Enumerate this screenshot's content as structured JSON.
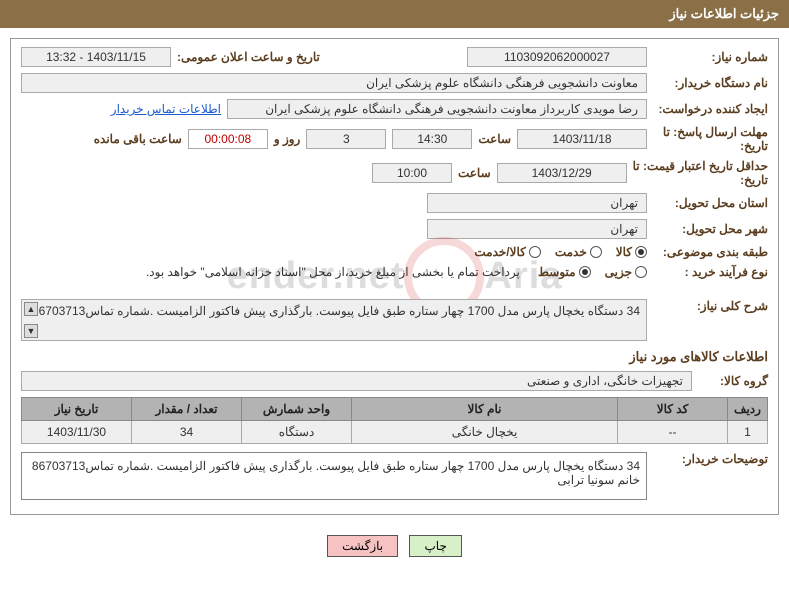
{
  "header": {
    "title": "جزئیات اطلاعات نیاز"
  },
  "fields": {
    "need_no_label": "شماره نیاز:",
    "need_no": "1103092062000027",
    "announce_label": "تاریخ و ساعت اعلان عمومی:",
    "announce_val": "1403/11/15 - 13:32",
    "buyer_org_label": "نام دستگاه خریدار:",
    "buyer_org": "معاونت دانشجویی  فرهنگی دانشگاه علوم پزشکی ایران",
    "requester_label": "ایجاد کننده درخواست:",
    "requester": "رضا  مویدی  کاربرداز معاونت دانشجویی  فرهنگی دانشگاه علوم پزشکی ایران",
    "contact_link": "اطلاعات تماس خریدار",
    "reply_deadline_to_label": "مهلت ارسال پاسخ:  تا",
    "date_label_suffix": "تاریخ:",
    "reply_deadline_date": "1403/11/18",
    "time_label": "ساعت",
    "reply_deadline_time": "14:30",
    "days_and": "روز و",
    "days_remaining": "3",
    "countdown": "00:00:08",
    "remaining_label": "ساعت باقی مانده",
    "price_valid_label": "حداقل تاریخ اعتبار قیمت:  تا",
    "price_valid_date": "1403/12/29",
    "price_valid_time": "10:00",
    "province_label": "استان محل تحویل:",
    "province": "تهران",
    "city_label": "شهر محل تحویل:",
    "city": "تهران",
    "subject_cat_label": "طبقه بندی موضوعی:",
    "subject_cat_options": [
      "کالا",
      "خدمت",
      "کالا/خدمت"
    ],
    "subject_cat_selected": 0,
    "proc_type_label": "نوع فرآیند خرید :",
    "proc_type_options": [
      "جزیی",
      "متوسط"
    ],
    "proc_type_selected": 1,
    "proc_note": "پرداخت تمام یا بخشی از مبلغ خرید،از محل \"اسناد خزانه اسلامی\" خواهد بود.",
    "general_desc_label": "شرح کلی نیاز:",
    "general_desc": "34 دستگاه یخچال پارس مدل 1700 چهار ستاره طبق فایل پیوست. بارگذاری پیش فاکتور الزامیست .شماره تماس86703713",
    "items_title": "اطلاعات کالاهای مورد نیاز",
    "group_label": "گروه کالا:",
    "group": "تجهیزات خانگی، اداری و صنعتی"
  },
  "table": {
    "columns": [
      "ردیف",
      "کد کالا",
      "نام کالا",
      "واحد شمارش",
      "تعداد / مقدار",
      "تاریخ نیاز"
    ],
    "col_widths": [
      "40px",
      "110px",
      "auto",
      "110px",
      "110px",
      "110px"
    ],
    "rows": [
      [
        "1",
        "--",
        "یخچال خانگی",
        "دستگاه",
        "34",
        "1403/11/30"
      ]
    ]
  },
  "buyer_note": {
    "label": "توضیحات خریدار:",
    "text": "34 دستگاه یخچال پارس مدل 1700 چهار ستاره طبق فایل پیوست. بارگذاری پیش فاکتور الزامیست .شماره تماس86703713 خانم سونیا ترابی"
  },
  "buttons": {
    "print": "چاپ",
    "back": "بازگشت"
  },
  "colors": {
    "header_bg": "#8b6f47",
    "label_color": "#5b3d1f",
    "box_bg": "#efefef",
    "th_bg": "#b3b3b3"
  }
}
